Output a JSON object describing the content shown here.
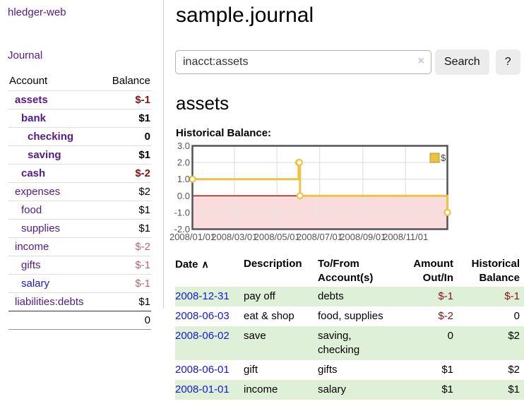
{
  "app": {
    "title": "hledger-web"
  },
  "sidebar": {
    "journal_label": "Journal",
    "accounts_table": {
      "account_header": "Account",
      "balance_header": "Balance",
      "rows": [
        {
          "name": "assets",
          "balance": "$-1",
          "depth": 1,
          "bold": true
        },
        {
          "name": "bank",
          "balance": "$1",
          "depth": 2,
          "bold": true
        },
        {
          "name": "checking",
          "balance": "0",
          "depth": 3,
          "bold": true
        },
        {
          "name": "saving",
          "balance": "$1",
          "depth": 3,
          "bold": true
        },
        {
          "name": "cash",
          "balance": "$-2",
          "depth": 2,
          "bold": true
        },
        {
          "name": "expenses",
          "balance": "$2",
          "depth": 1,
          "bold": false
        },
        {
          "name": "food",
          "balance": "$1",
          "depth": 2,
          "bold": false
        },
        {
          "name": "supplies",
          "balance": "$1",
          "depth": 2,
          "bold": false
        },
        {
          "name": "income",
          "balance": "$-2",
          "depth": 1,
          "bold": false
        },
        {
          "name": "gifts",
          "balance": "$-1",
          "depth": 2,
          "bold": false
        },
        {
          "name": "salary",
          "balance": "$-1",
          "depth": 2,
          "bold": false,
          "link_color": "blue"
        },
        {
          "name": "liabilities:debts",
          "balance": "$1",
          "depth": 1,
          "bold": false
        }
      ],
      "total": "0"
    }
  },
  "main": {
    "title": "sample.journal",
    "search": {
      "value": "inacct:assets",
      "clear_icon": "×",
      "button_label": "Search",
      "help_label": "?"
    },
    "account_heading": "assets",
    "chart_label": "Historical Balance:",
    "register_table": {
      "headers": {
        "date": "Date",
        "sort_icon": "∧",
        "description": "Description",
        "accounts": "To/From Account(s)",
        "amount": "Amount Out/In",
        "balance": "Historical Balance"
      },
      "rows": [
        {
          "date": "2008-12-31",
          "description": "pay off",
          "accounts": "debts",
          "amount": "$-1",
          "balance": "$-1"
        },
        {
          "date": "2008-06-03",
          "description": "eat & shop",
          "accounts": "food, supplies",
          "amount": "$-2",
          "balance": "0"
        },
        {
          "date": "2008-06-02",
          "description": "save",
          "accounts": "saving, checking",
          "amount": "0",
          "balance": "$2"
        },
        {
          "date": "2008-06-01",
          "description": "gift",
          "accounts": "gifts",
          "amount": "$1",
          "balance": "$2"
        },
        {
          "date": "2008-01-01",
          "description": "income",
          "accounts": "salary",
          "amount": "$1",
          "balance": "$1"
        }
      ]
    }
  },
  "chart_data": {
    "type": "line",
    "step": true,
    "title": "Historical Balance:",
    "series": [
      {
        "name": "$",
        "color": "#edc240",
        "points": [
          {
            "x": "2008-01-01",
            "y": 1
          },
          {
            "x": "2008-06-01",
            "y": 2
          },
          {
            "x": "2008-06-02",
            "y": 2
          },
          {
            "x": "2008-06-03",
            "y": 0
          },
          {
            "x": "2008-12-31",
            "y": -1
          }
        ]
      }
    ],
    "xlim": [
      "2008-01-01",
      "2008-12-31"
    ],
    "ylim": [
      -2,
      3
    ],
    "x_ticks": [
      {
        "x": "2008-01-01",
        "label": "2008/01/01"
      },
      {
        "x": "2008-03-01",
        "label": "2008/03/01"
      },
      {
        "x": "2008-05-01",
        "label": "2008/05/01"
      },
      {
        "x": "2008-07-01",
        "label": "2008/07/01"
      },
      {
        "x": "2008-09-01",
        "label": "2008/09/01"
      },
      {
        "x": "2008-11-01",
        "label": "2008/11/01"
      }
    ],
    "y_ticks": [
      {
        "v": 3,
        "label": "3.0"
      },
      {
        "v": 2,
        "label": "2.0"
      },
      {
        "v": 1,
        "label": "1.0"
      },
      {
        "v": 0,
        "label": "0.0"
      },
      {
        "v": -1,
        "label": "-1.0"
      },
      {
        "v": -2,
        "label": "-2.0"
      }
    ],
    "grid": true,
    "legend": {
      "label": "$",
      "position": "top-right"
    },
    "colors": {
      "negative_region": "#fbdcdc",
      "zero_line": "#a00000",
      "grid": "#e3e3e3",
      "border": "#545454",
      "tick_text": "#545454",
      "marker_fill": "#ffffff"
    }
  }
}
